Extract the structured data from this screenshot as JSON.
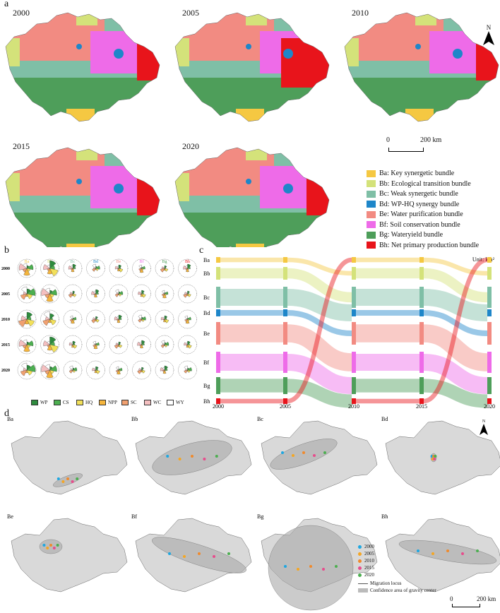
{
  "panels": {
    "a": "a",
    "b": "b",
    "c": "c",
    "d": "d"
  },
  "years": [
    "2000",
    "2005",
    "2010",
    "2015",
    "2020"
  ],
  "north_label": "N",
  "scale_bar": {
    "zero": "0",
    "distance": "200 km"
  },
  "bundles": [
    {
      "code": "Ba",
      "label": "Ba: Key synergetic bundle",
      "color": "#F5C842"
    },
    {
      "code": "Bb",
      "label": "Bb: Ecological transition bundle",
      "color": "#D4E27A"
    },
    {
      "code": "Bc",
      "label": "Bc: Weak synergetic bundle",
      "color": "#7FBFA6"
    },
    {
      "code": "Bd",
      "label": "Bd: WP-HQ synergy bundle",
      "color": "#1E86C9"
    },
    {
      "code": "Be",
      "label": "Be: Water purification bundle",
      "color": "#F28B82"
    },
    {
      "code": "Bf",
      "label": "Bf: Soil conservation bundle",
      "color": "#EE6BE8"
    },
    {
      "code": "Bg",
      "label": "Bg: Wateryield bundle",
      "color": "#4E9E5A"
    },
    {
      "code": "Bh",
      "label": "Bh: Net primary production bundle",
      "color": "#E8141B"
    }
  ],
  "rose_legend": [
    {
      "label": "WP",
      "color": "#2E8B3E"
    },
    {
      "label": "CS",
      "color": "#4CAF50"
    },
    {
      "label": "HQ",
      "color": "#F2E05A"
    },
    {
      "label": "NPP",
      "color": "#F5B53C"
    },
    {
      "label": "SC",
      "color": "#F0A070"
    },
    {
      "label": "WC",
      "color": "#F4BFC0"
    },
    {
      "label": "WY",
      "color": "#ffffff"
    }
  ],
  "sankey": {
    "unit": "Unit: km²",
    "x_labels": [
      "2000",
      "2005",
      "2010",
      "2015",
      "2020"
    ],
    "row_labels": [
      "Ba",
      "Bb",
      "Bc",
      "Bd",
      "Be",
      "Bf",
      "Bg",
      "Bh"
    ]
  },
  "d_legend": {
    "years": [
      "2000",
      "2005",
      "2010",
      "2015",
      "2020"
    ],
    "year_colors": [
      "#1EA7E1",
      "#F5A623",
      "#F08A2C",
      "#E74C8C",
      "#4CAF50"
    ],
    "locus": "Migration locus",
    "ellipse": "Confidence area of gravity center"
  }
}
